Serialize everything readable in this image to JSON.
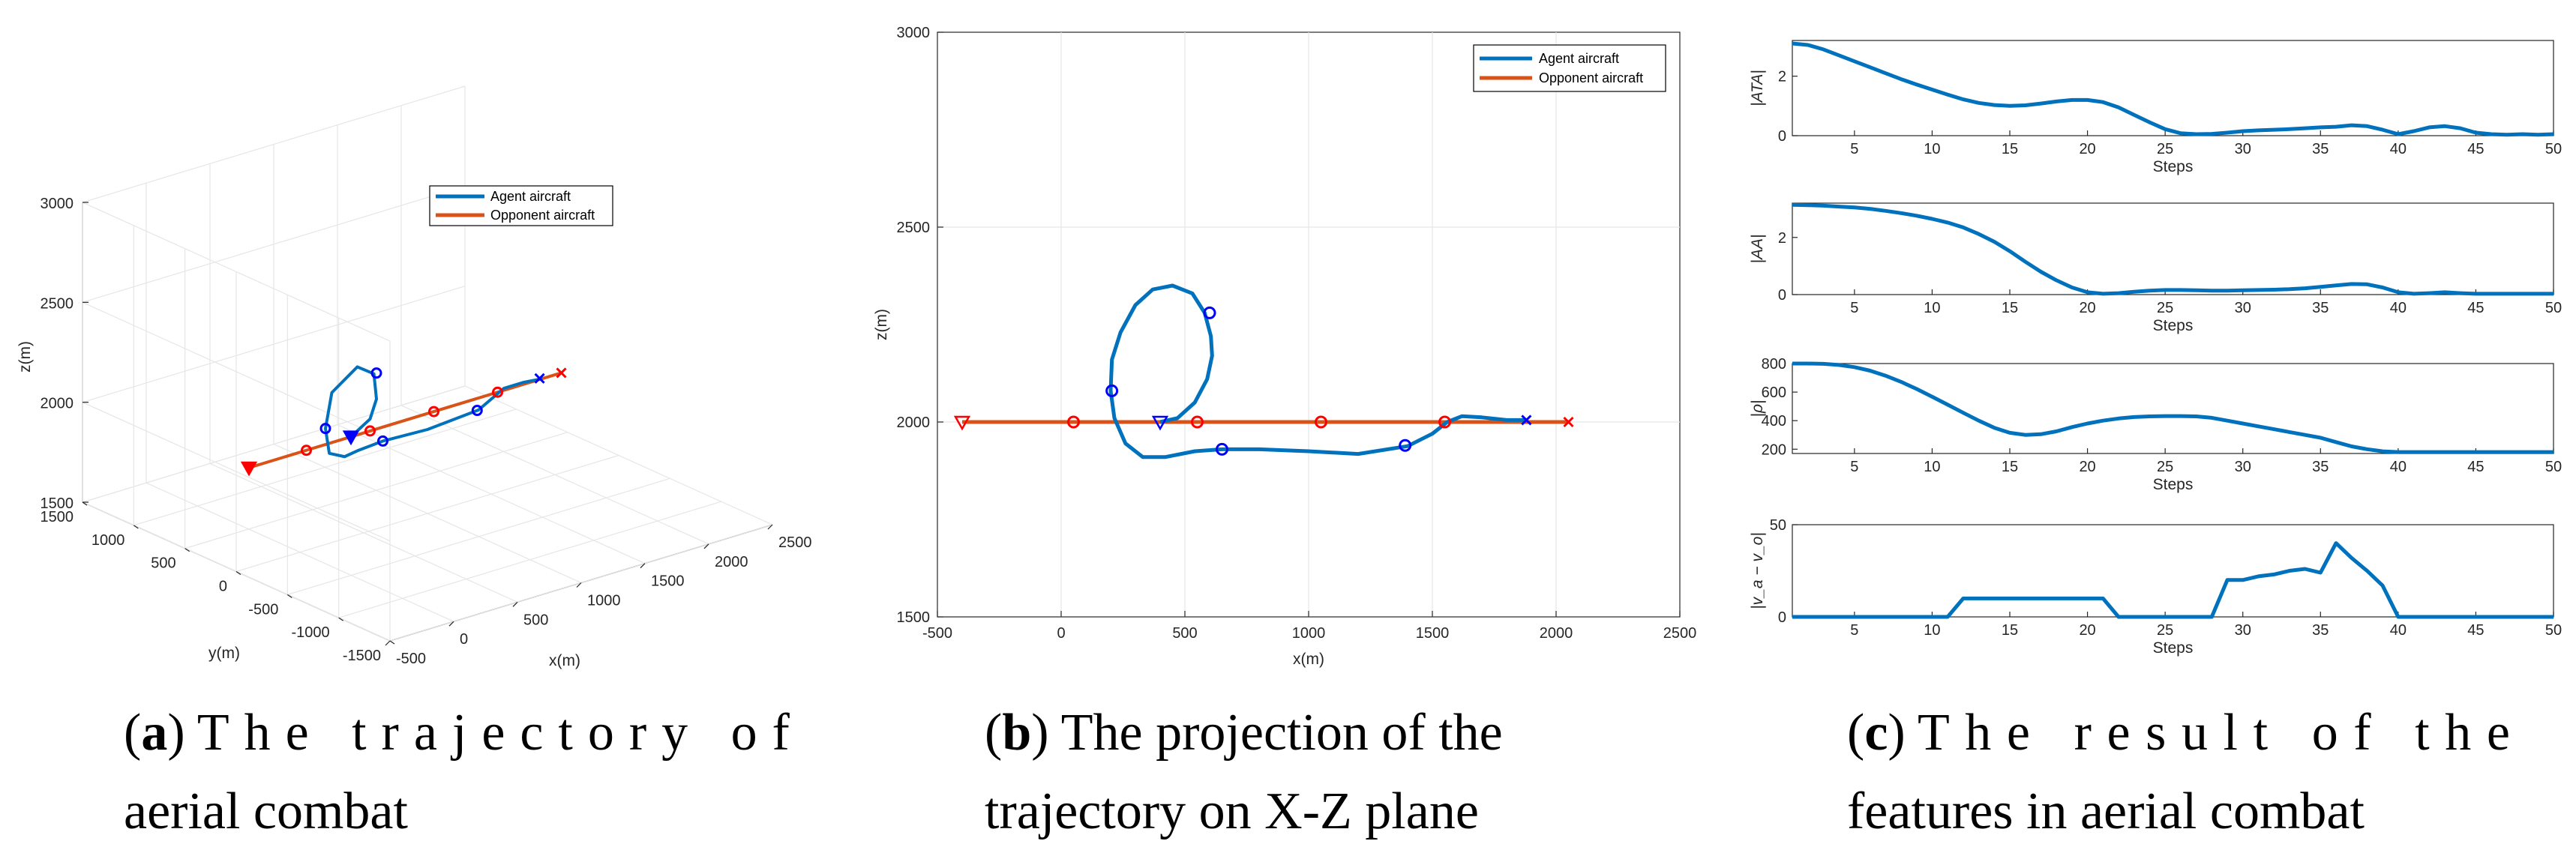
{
  "colors": {
    "agent": "#0072BD",
    "opponent": "#D95319",
    "start_marker": "#ff0000",
    "agent_marker": "#0000ff",
    "grid": "#e6e6e6",
    "axis": "#262626"
  },
  "chart_data": [
    {
      "id": "a",
      "type": "line3d",
      "xlabel": "x(m)",
      "ylabel": "y(m)",
      "zlabel": "z(m)",
      "xlim": [
        -500,
        2500
      ],
      "ylim": [
        -1500,
        1500
      ],
      "zlim": [
        1500,
        3000
      ],
      "xticks": [
        "-500",
        "0",
        "500",
        "1000",
        "1500",
        "2000",
        "2500"
      ],
      "yticks": [
        "-1500",
        "-1000",
        "-500",
        "0",
        "500",
        "1000",
        "1500"
      ],
      "zticks": [
        "1500",
        "2000",
        "2500",
        "3000"
      ],
      "legend": [
        "Agent aircraft",
        "Opponent aircraft"
      ],
      "caption_label": "a",
      "caption_lines": [
        "The trajectory of",
        "aerial combat"
      ],
      "series": [
        {
          "name": "Agent aircraft",
          "x": [
            400,
            550,
            600,
            580,
            450,
            250,
            200,
            230,
            350,
            450,
            650,
            1000,
            1400,
            1600,
            1750,
            1900
          ],
          "y": [
            0,
            0,
            0,
            0,
            0,
            0,
            0,
            0,
            0,
            0,
            0,
            0,
            0,
            0,
            0,
            0
          ],
          "z": [
            2000,
            2060,
            2150,
            2280,
            2340,
            2250,
            2080,
            1950,
            1910,
            1920,
            1930,
            1920,
            1940,
            2010,
            2010,
            2000
          ]
        },
        {
          "name": "Opponent aircraft",
          "x": [
            -400,
            50,
            550,
            1050,
            1550,
            2050
          ],
          "y": [
            0,
            0,
            0,
            0,
            0,
            0
          ],
          "z": [
            2000,
            2000,
            2000,
            2000,
            2000,
            2000
          ]
        }
      ]
    },
    {
      "id": "b",
      "type": "line",
      "xlabel": "x(m)",
      "ylabel": "z(m)",
      "xlim": [
        -500,
        2500
      ],
      "ylim": [
        1500,
        3000
      ],
      "xticks": [
        -500,
        0,
        500,
        1000,
        1500,
        2000,
        2500
      ],
      "yticks": [
        1500,
        2000,
        2500,
        3000
      ],
      "legend": [
        "Agent aircraft",
        "Opponent aircraft"
      ],
      "caption_label": "b",
      "caption_lines": [
        "The projection of the",
        "trajectory on X-Z plane"
      ],
      "series": [
        {
          "name": "Agent aircraft",
          "x": [
            400,
            470,
            540,
            590,
            610,
            605,
            580,
            530,
            450,
            370,
            300,
            240,
            205,
            200,
            215,
            260,
            330,
            420,
            540,
            650,
            800,
            1000,
            1200,
            1400,
            1500,
            1560,
            1620,
            1700,
            1800,
            1880
          ],
          "z": [
            2000,
            2010,
            2050,
            2110,
            2170,
            2220,
            2280,
            2330,
            2350,
            2340,
            2300,
            2230,
            2160,
            2080,
            2010,
            1945,
            1910,
            1910,
            1925,
            1930,
            1930,
            1925,
            1918,
            1938,
            1970,
            2000,
            2015,
            2012,
            2005,
            2005
          ],
          "markers_x": [
            205,
            600,
            650,
            1390
          ],
          "markers_z": [
            2080,
            2280,
            1930,
            1940
          ]
        },
        {
          "name": "Opponent aircraft",
          "x": [
            -400,
            2050
          ],
          "z": [
            2000,
            2000
          ],
          "markers_x": [
            50,
            550,
            1050,
            1550
          ],
          "markers_z": [
            2000,
            2000,
            2000,
            2000
          ]
        }
      ],
      "start_markers": {
        "opponent": [
          -400,
          2000
        ],
        "agent": [
          400,
          2000
        ]
      },
      "end_markers": {
        "agent": [
          1880,
          2005
        ],
        "opponent": [
          2050,
          2000
        ]
      }
    },
    {
      "id": "c1",
      "type": "line",
      "xlabel": "Steps",
      "ylabel": "|ATA|",
      "xlim": [
        1,
        50
      ],
      "ylim": [
        0,
        3.2
      ],
      "xticks": [
        5,
        10,
        15,
        20,
        25,
        30,
        35,
        40,
        45,
        50
      ],
      "yticks": [
        0,
        2
      ],
      "x": [
        1,
        2,
        3,
        4,
        5,
        6,
        7,
        8,
        9,
        10,
        11,
        12,
        13,
        14,
        15,
        16,
        17,
        18,
        19,
        20,
        21,
        22,
        23,
        24,
        25,
        26,
        27,
        28,
        29,
        30,
        31,
        32,
        33,
        34,
        35,
        36,
        37,
        38,
        39,
        40,
        41,
        42,
        43,
        44,
        45,
        46,
        47,
        48,
        49,
        50
      ],
      "values": [
        3.1,
        3.05,
        2.9,
        2.7,
        2.5,
        2.3,
        2.1,
        1.9,
        1.72,
        1.55,
        1.38,
        1.22,
        1.1,
        1.03,
        1.0,
        1.02,
        1.08,
        1.15,
        1.2,
        1.2,
        1.13,
        0.95,
        0.7,
        0.45,
        0.22,
        0.08,
        0.05,
        0.06,
        0.1,
        0.15,
        0.18,
        0.2,
        0.22,
        0.25,
        0.28,
        0.3,
        0.35,
        0.32,
        0.2,
        0.05,
        0.15,
        0.28,
        0.32,
        0.25,
        0.1,
        0.05,
        0.03,
        0.05,
        0.03,
        0.05
      ]
    },
    {
      "id": "c2",
      "type": "line",
      "xlabel": "Steps",
      "ylabel": "|AA|",
      "xlim": [
        1,
        50
      ],
      "ylim": [
        0,
        3.2
      ],
      "xticks": [
        5,
        10,
        15,
        20,
        25,
        30,
        35,
        40,
        45,
        50
      ],
      "yticks": [
        0,
        2
      ],
      "x": [
        1,
        2,
        3,
        4,
        5,
        6,
        7,
        8,
        9,
        10,
        11,
        12,
        13,
        14,
        15,
        16,
        17,
        18,
        19,
        20,
        21,
        22,
        23,
        24,
        25,
        26,
        27,
        28,
        29,
        30,
        31,
        32,
        33,
        34,
        35,
        36,
        37,
        38,
        39,
        40,
        41,
        42,
        43,
        44,
        45,
        46,
        47,
        48,
        49,
        50
      ],
      "values": [
        3.14,
        3.13,
        3.11,
        3.08,
        3.05,
        3.0,
        2.93,
        2.85,
        2.76,
        2.65,
        2.52,
        2.35,
        2.12,
        1.85,
        1.52,
        1.15,
        0.8,
        0.5,
        0.25,
        0.08,
        0.03,
        0.05,
        0.1,
        0.14,
        0.16,
        0.16,
        0.15,
        0.14,
        0.14,
        0.15,
        0.16,
        0.17,
        0.19,
        0.22,
        0.27,
        0.32,
        0.37,
        0.36,
        0.25,
        0.08,
        0.03,
        0.05,
        0.08,
        0.05,
        0.03,
        0.03,
        0.03,
        0.03,
        0.03,
        0.03
      ]
    },
    {
      "id": "c3",
      "type": "line",
      "xlabel": "Steps",
      "ylabel": "|ρ|",
      "xlim": [
        1,
        50
      ],
      "ylim": [
        170,
        800
      ],
      "xticks": [
        5,
        10,
        15,
        20,
        25,
        30,
        35,
        40,
        45,
        50
      ],
      "yticks": [
        200,
        400,
        600,
        800
      ],
      "x": [
        1,
        2,
        3,
        4,
        5,
        6,
        7,
        8,
        9,
        10,
        11,
        12,
        13,
        14,
        15,
        16,
        17,
        18,
        19,
        20,
        21,
        22,
        23,
        24,
        25,
        26,
        27,
        28,
        29,
        30,
        31,
        32,
        33,
        34,
        35,
        36,
        37,
        38,
        39,
        40,
        41,
        42,
        43,
        44,
        45,
        46,
        47,
        48,
        49,
        50
      ],
      "values": [
        800,
        800,
        798,
        790,
        775,
        750,
        715,
        672,
        622,
        568,
        512,
        455,
        400,
        350,
        315,
        300,
        305,
        325,
        355,
        380,
        400,
        415,
        425,
        430,
        432,
        432,
        430,
        420,
        400,
        380,
        360,
        340,
        320,
        300,
        280,
        250,
        220,
        200,
        185,
        180,
        180,
        180,
        180,
        180,
        180,
        180,
        180,
        180,
        180,
        180
      ]
    },
    {
      "id": "c4",
      "type": "line",
      "xlabel": "Steps",
      "ylabel": "|v_a − v_o|",
      "xlim": [
        1,
        50
      ],
      "ylim": [
        0,
        50
      ],
      "xticks": [
        5,
        10,
        15,
        20,
        25,
        30,
        35,
        40,
        45,
        50
      ],
      "yticks": [
        0,
        50
      ],
      "x": [
        1,
        2,
        3,
        4,
        5,
        6,
        7,
        8,
        9,
        10,
        11,
        12,
        13,
        14,
        15,
        16,
        17,
        18,
        19,
        20,
        21,
        22,
        23,
        24,
        25,
        26,
        27,
        28,
        29,
        30,
        31,
        32,
        33,
        34,
        35,
        36,
        37,
        38,
        39,
        40,
        41,
        42,
        43,
        44,
        45,
        46,
        47,
        48,
        49,
        50
      ],
      "values": [
        0,
        0,
        0,
        0,
        0,
        0,
        0,
        0,
        0,
        0,
        0,
        10,
        10,
        10,
        10,
        10,
        10,
        10,
        10,
        10,
        10,
        0,
        0,
        0,
        0,
        0,
        0,
        0,
        20,
        20,
        22,
        23,
        25,
        26,
        24,
        40,
        32,
        25,
        17,
        0,
        0,
        0,
        0,
        0,
        0,
        0,
        0,
        0,
        0,
        0
      ]
    }
  ],
  "captions": {
    "c": {
      "label": "c",
      "lines": [
        "The result of the",
        "features in aerial combat"
      ]
    }
  }
}
